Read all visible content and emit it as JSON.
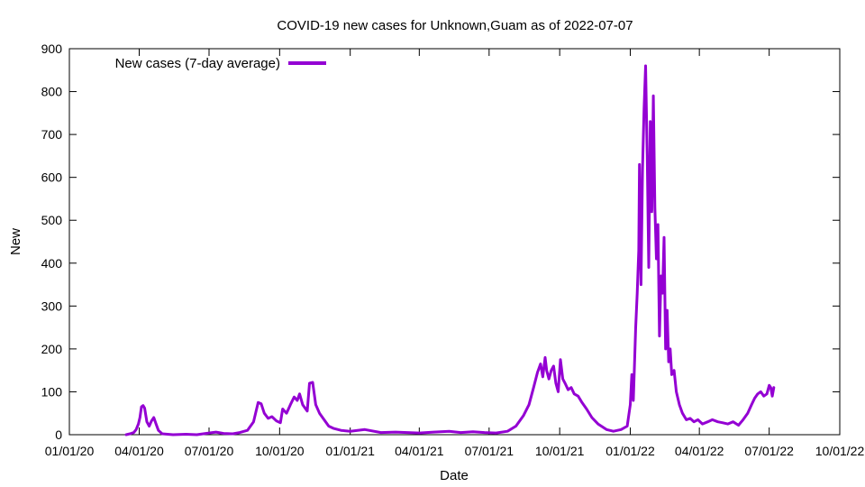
{
  "chart_data": {
    "type": "line",
    "title": "COVID-19 new cases for Unknown,Guam as of 2022-07-07",
    "xlabel": "Date",
    "ylabel": "New",
    "x_tick_labels": [
      "01/01/20",
      "04/01/20",
      "07/01/20",
      "10/01/20",
      "01/01/21",
      "04/01/21",
      "07/01/21",
      "10/01/21",
      "01/01/22",
      "04/01/22",
      "07/01/22",
      "10/01/22"
    ],
    "y_tick_labels": [
      "0",
      "100",
      "200",
      "300",
      "400",
      "500",
      "600",
      "700",
      "800",
      "900"
    ],
    "xlim": [
      "2020-01-01",
      "2022-10-01"
    ],
    "ylim": [
      0,
      900
    ],
    "grid": false,
    "legend_position": "top-left",
    "series": [
      {
        "name": "New cases (7-day average)",
        "color": "#9400d3",
        "points": [
          [
            "2020-03-15",
            0
          ],
          [
            "2020-03-20",
            2
          ],
          [
            "2020-03-25",
            5
          ],
          [
            "2020-03-28",
            12
          ],
          [
            "2020-03-31",
            25
          ],
          [
            "2020-04-02",
            40
          ],
          [
            "2020-04-04",
            65
          ],
          [
            "2020-04-06",
            68
          ],
          [
            "2020-04-08",
            62
          ],
          [
            "2020-04-11",
            30
          ],
          [
            "2020-04-14",
            20
          ],
          [
            "2020-04-17",
            32
          ],
          [
            "2020-04-20",
            40
          ],
          [
            "2020-04-23",
            25
          ],
          [
            "2020-04-26",
            10
          ],
          [
            "2020-05-01",
            2
          ],
          [
            "2020-05-15",
            0
          ],
          [
            "2020-06-01",
            1
          ],
          [
            "2020-06-15",
            0
          ],
          [
            "2020-07-01",
            4
          ],
          [
            "2020-07-10",
            6
          ],
          [
            "2020-07-20",
            3
          ],
          [
            "2020-08-01",
            2
          ],
          [
            "2020-08-10",
            5
          ],
          [
            "2020-08-20",
            10
          ],
          [
            "2020-08-28",
            30
          ],
          [
            "2020-09-03",
            75
          ],
          [
            "2020-09-07",
            72
          ],
          [
            "2020-09-11",
            50
          ],
          [
            "2020-09-16",
            38
          ],
          [
            "2020-09-21",
            42
          ],
          [
            "2020-09-27",
            32
          ],
          [
            "2020-10-02",
            28
          ],
          [
            "2020-10-05",
            60
          ],
          [
            "2020-10-10",
            50
          ],
          [
            "2020-10-15",
            70
          ],
          [
            "2020-10-20",
            88
          ],
          [
            "2020-10-24",
            80
          ],
          [
            "2020-10-27",
            95
          ],
          [
            "2020-10-31",
            70
          ],
          [
            "2020-11-04",
            60
          ],
          [
            "2020-11-06",
            55
          ],
          [
            "2020-11-09",
            120
          ],
          [
            "2020-11-13",
            122
          ],
          [
            "2020-11-17",
            70
          ],
          [
            "2020-11-22",
            50
          ],
          [
            "2020-11-28",
            35
          ],
          [
            "2020-12-04",
            20
          ],
          [
            "2020-12-10",
            15
          ],
          [
            "2020-12-20",
            10
          ],
          [
            "2021-01-01",
            8
          ],
          [
            "2021-01-20",
            12
          ],
          [
            "2021-02-10",
            5
          ],
          [
            "2021-03-01",
            6
          ],
          [
            "2021-04-01",
            4
          ],
          [
            "2021-04-20",
            6
          ],
          [
            "2021-05-10",
            8
          ],
          [
            "2021-05-25",
            5
          ],
          [
            "2021-06-10",
            7
          ],
          [
            "2021-06-25",
            5
          ],
          [
            "2021-07-10",
            4
          ],
          [
            "2021-07-25",
            8
          ],
          [
            "2021-08-05",
            20
          ],
          [
            "2021-08-15",
            45
          ],
          [
            "2021-08-22",
            70
          ],
          [
            "2021-08-28",
            110
          ],
          [
            "2021-09-02",
            145
          ],
          [
            "2021-09-06",
            165
          ],
          [
            "2021-09-09",
            135
          ],
          [
            "2021-09-12",
            180
          ],
          [
            "2021-09-14",
            150
          ],
          [
            "2021-09-17",
            130
          ],
          [
            "2021-09-20",
            150
          ],
          [
            "2021-09-23",
            160
          ],
          [
            "2021-09-26",
            120
          ],
          [
            "2021-09-29",
            100
          ],
          [
            "2021-10-02",
            175
          ],
          [
            "2021-10-05",
            130
          ],
          [
            "2021-10-08",
            120
          ],
          [
            "2021-10-12",
            105
          ],
          [
            "2021-10-16",
            110
          ],
          [
            "2021-10-20",
            95
          ],
          [
            "2021-10-25",
            90
          ],
          [
            "2021-10-30",
            75
          ],
          [
            "2021-11-05",
            60
          ],
          [
            "2021-11-12",
            40
          ],
          [
            "2021-11-20",
            25
          ],
          [
            "2021-12-01",
            12
          ],
          [
            "2021-12-10",
            8
          ],
          [
            "2021-12-20",
            12
          ],
          [
            "2021-12-28",
            20
          ],
          [
            "2022-01-01",
            70
          ],
          [
            "2022-01-03",
            140
          ],
          [
            "2022-01-05",
            80
          ],
          [
            "2022-01-08",
            250
          ],
          [
            "2022-01-10",
            330
          ],
          [
            "2022-01-12",
            430
          ],
          [
            "2022-01-13",
            630
          ],
          [
            "2022-01-15",
            350
          ],
          [
            "2022-01-17",
            620
          ],
          [
            "2022-01-19",
            760
          ],
          [
            "2022-01-21",
            860
          ],
          [
            "2022-01-23",
            650
          ],
          [
            "2022-01-25",
            390
          ],
          [
            "2022-01-27",
            730
          ],
          [
            "2022-01-29",
            520
          ],
          [
            "2022-01-31",
            790
          ],
          [
            "2022-02-02",
            530
          ],
          [
            "2022-02-04",
            410
          ],
          [
            "2022-02-06",
            490
          ],
          [
            "2022-02-08",
            230
          ],
          [
            "2022-02-10",
            370
          ],
          [
            "2022-02-12",
            330
          ],
          [
            "2022-02-14",
            460
          ],
          [
            "2022-02-16",
            200
          ],
          [
            "2022-02-18",
            290
          ],
          [
            "2022-02-20",
            170
          ],
          [
            "2022-02-22",
            200
          ],
          [
            "2022-02-24",
            140
          ],
          [
            "2022-02-27",
            150
          ],
          [
            "2022-03-02",
            100
          ],
          [
            "2022-03-06",
            70
          ],
          [
            "2022-03-10",
            50
          ],
          [
            "2022-03-15",
            35
          ],
          [
            "2022-03-20",
            38
          ],
          [
            "2022-03-25",
            30
          ],
          [
            "2022-03-30",
            35
          ],
          [
            "2022-04-05",
            25
          ],
          [
            "2022-04-12",
            30
          ],
          [
            "2022-04-18",
            35
          ],
          [
            "2022-04-25",
            30
          ],
          [
            "2022-05-01",
            28
          ],
          [
            "2022-05-08",
            25
          ],
          [
            "2022-05-15",
            30
          ],
          [
            "2022-05-22",
            22
          ],
          [
            "2022-05-28",
            35
          ],
          [
            "2022-06-03",
            50
          ],
          [
            "2022-06-08",
            70
          ],
          [
            "2022-06-12",
            85
          ],
          [
            "2022-06-16",
            95
          ],
          [
            "2022-06-20",
            100
          ],
          [
            "2022-06-24",
            90
          ],
          [
            "2022-06-28",
            95
          ],
          [
            "2022-07-01",
            115
          ],
          [
            "2022-07-03",
            110
          ],
          [
            "2022-07-05",
            90
          ],
          [
            "2022-07-07",
            110
          ]
        ]
      }
    ]
  }
}
